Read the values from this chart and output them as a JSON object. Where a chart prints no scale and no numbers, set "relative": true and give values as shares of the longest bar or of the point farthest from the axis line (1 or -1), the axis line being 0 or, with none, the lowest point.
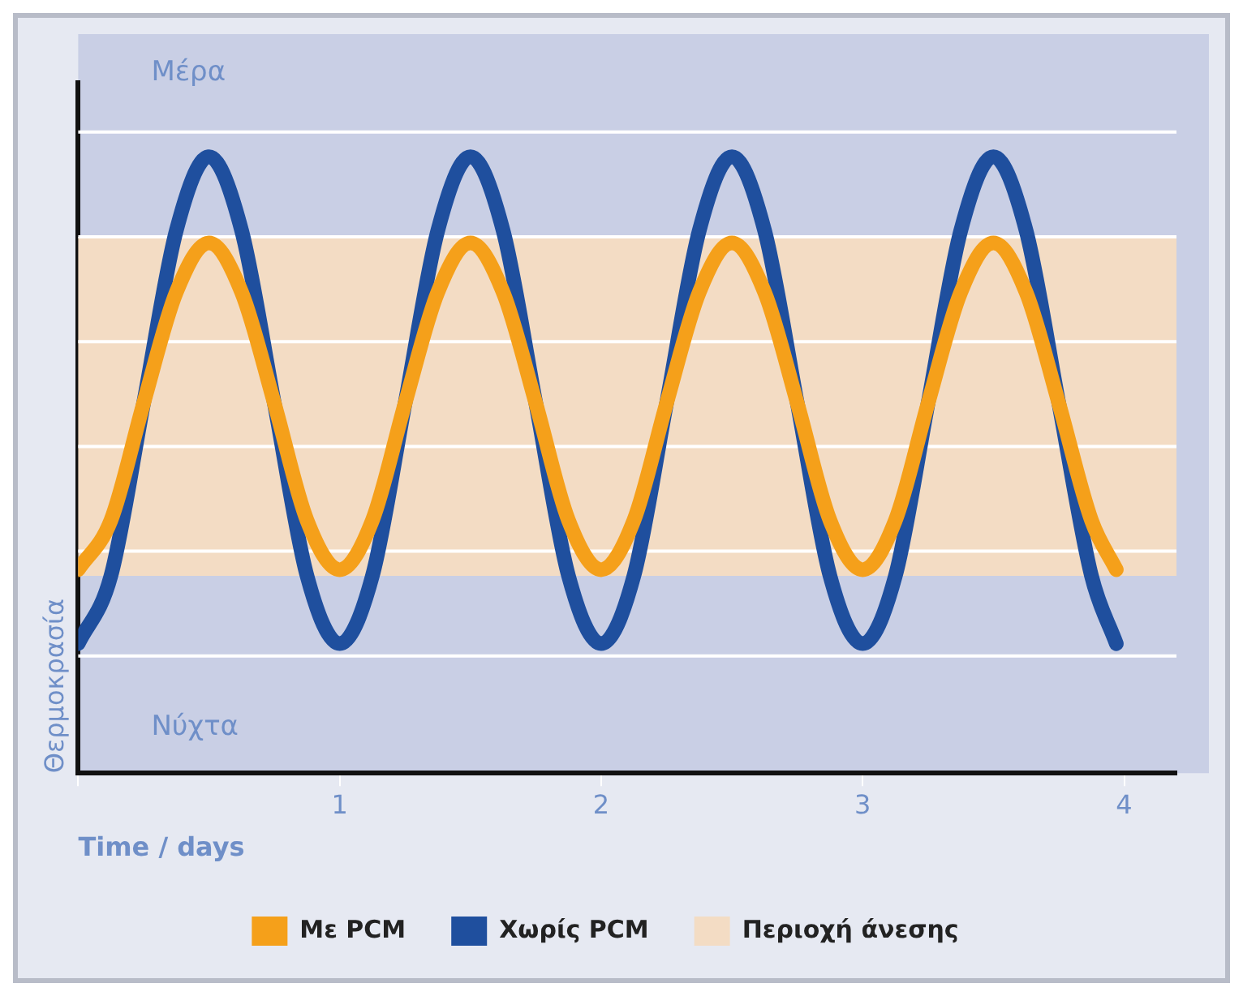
{
  "chart_data": {
    "type": "line",
    "relative": true,
    "xlabel": "Time / days",
    "ylabel": "Θερμοκρασία",
    "x": [
      0,
      0.125,
      0.25,
      0.375,
      0.5,
      0.625,
      0.75,
      0.875,
      1,
      1.125,
      1.25,
      1.375,
      1.5,
      1.625,
      1.75,
      1.875,
      2,
      2.125,
      2.25,
      2.375,
      2.5,
      2.625,
      2.75,
      2.875,
      3,
      3.125,
      3.25,
      3.375,
      3.5,
      3.625,
      3.75,
      3.875,
      3.97
    ],
    "series": [
      {
        "name": "Με PCM",
        "color": "#f5a01a",
        "values": [
          0.33,
          0.41,
          0.6,
          0.78,
          0.86,
          0.78,
          0.6,
          0.41,
          0.33,
          0.41,
          0.6,
          0.78,
          0.86,
          0.78,
          0.6,
          0.41,
          0.33,
          0.41,
          0.6,
          0.78,
          0.86,
          0.78,
          0.6,
          0.41,
          0.33,
          0.41,
          0.6,
          0.78,
          0.86,
          0.78,
          0.6,
          0.41,
          0.33
        ]
      },
      {
        "name": "Χωρίς PCM",
        "color": "#1f4f9e",
        "values": [
          0.21,
          0.32,
          0.6,
          0.88,
          1,
          0.88,
          0.6,
          0.32,
          0.21,
          0.32,
          0.6,
          0.88,
          1,
          0.88,
          0.6,
          0.32,
          0.21,
          0.32,
          0.6,
          0.88,
          1,
          0.88,
          0.6,
          0.32,
          0.21,
          0.32,
          0.6,
          0.88,
          1,
          0.88,
          0.6,
          0.32,
          0.21
        ]
      }
    ],
    "bands": [
      {
        "axis": "y",
        "from": 0.32,
        "to": 0.87,
        "label": "Περιοχή άνεσης",
        "color": "#f3dcc4"
      }
    ],
    "xlim": [
      0,
      4.2
    ],
    "xticks": [
      {
        "value": 0,
        "label": null
      },
      1,
      2,
      3,
      4
    ],
    "annotations": [
      "Μέρα",
      "Νύχτα"
    ],
    "ref_lines": [
      {
        "axis": "y",
        "value": 0.19,
        "color": "#ffffff"
      },
      {
        "axis": "y",
        "value": 0.36,
        "color": "#ffffff"
      },
      {
        "axis": "y",
        "value": 0.53,
        "color": "#ffffff"
      },
      {
        "axis": "y",
        "value": 0.7,
        "color": "#ffffff"
      },
      {
        "axis": "y",
        "value": 0.87,
        "color": "#ffffff"
      },
      {
        "axis": "y",
        "value": 1.04,
        "color": "#ffffff"
      }
    ],
    "legend": "bottom",
    "marker": "none",
    "line_style": "solid"
  }
}
